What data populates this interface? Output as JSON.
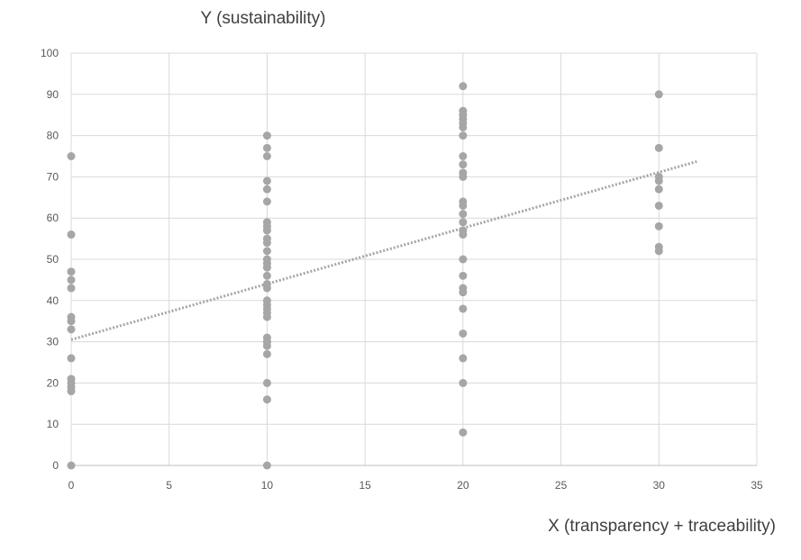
{
  "chart_data": {
    "type": "scatter",
    "title": "",
    "ylabel": "Y (sustainability)",
    "xlabel": "X (transparency + traceability)",
    "xlim": [
      0,
      35
    ],
    "ylim": [
      0,
      100
    ],
    "xticks": [
      0,
      5,
      10,
      15,
      20,
      25,
      30,
      35
    ],
    "yticks": [
      0,
      10,
      20,
      30,
      40,
      50,
      60,
      70,
      80,
      90,
      100
    ],
    "grid": true,
    "legend": "none",
    "colors": {
      "point": "#a6a6a6",
      "trendline": "#a6a6a6",
      "grid": "#d9d9d9",
      "tick_text": "#595959",
      "label_text": "#404040"
    },
    "series": [
      {
        "points": [
          [
            0,
            75
          ],
          [
            0,
            56
          ],
          [
            0,
            47
          ],
          [
            0,
            45
          ],
          [
            0,
            43
          ],
          [
            0,
            36
          ],
          [
            0,
            35
          ],
          [
            0,
            33
          ],
          [
            0,
            26
          ],
          [
            0,
            21
          ],
          [
            0,
            20
          ],
          [
            0,
            19
          ],
          [
            0,
            18
          ],
          [
            0,
            0
          ],
          [
            10,
            80
          ],
          [
            10,
            77
          ],
          [
            10,
            75
          ],
          [
            10,
            69
          ],
          [
            10,
            67
          ],
          [
            10,
            64
          ],
          [
            10,
            59
          ],
          [
            10,
            58
          ],
          [
            10,
            57
          ],
          [
            10,
            55
          ],
          [
            10,
            54
          ],
          [
            10,
            52
          ],
          [
            10,
            50
          ],
          [
            10,
            49
          ],
          [
            10,
            48
          ],
          [
            10,
            46
          ],
          [
            10,
            44
          ],
          [
            10,
            43
          ],
          [
            10,
            40
          ],
          [
            10,
            39
          ],
          [
            10,
            38
          ],
          [
            10,
            37
          ],
          [
            10,
            36
          ],
          [
            10,
            31
          ],
          [
            10,
            30
          ],
          [
            10,
            29
          ],
          [
            10,
            27
          ],
          [
            10,
            20
          ],
          [
            10,
            16
          ],
          [
            10,
            0
          ],
          [
            20,
            92
          ],
          [
            20,
            86
          ],
          [
            20,
            85
          ],
          [
            20,
            84
          ],
          [
            20,
            83
          ],
          [
            20,
            82
          ],
          [
            20,
            80
          ],
          [
            20,
            75
          ],
          [
            20,
            73
          ],
          [
            20,
            71
          ],
          [
            20,
            70
          ],
          [
            20,
            64
          ],
          [
            20,
            63
          ],
          [
            20,
            61
          ],
          [
            20,
            59
          ],
          [
            20,
            57
          ],
          [
            20,
            56
          ],
          [
            20,
            50
          ],
          [
            20,
            46
          ],
          [
            20,
            43
          ],
          [
            20,
            42
          ],
          [
            20,
            38
          ],
          [
            20,
            32
          ],
          [
            20,
            26
          ],
          [
            20,
            20
          ],
          [
            20,
            8
          ],
          [
            30,
            90
          ],
          [
            30,
            77
          ],
          [
            30,
            70
          ],
          [
            30,
            69
          ],
          [
            30,
            67
          ],
          [
            30,
            63
          ],
          [
            30,
            58
          ],
          [
            30,
            53
          ],
          [
            30,
            52
          ]
        ]
      }
    ],
    "trendline": {
      "style": "dotted",
      "x": [
        0,
        32
      ],
      "y": [
        30.5,
        73.8
      ]
    }
  }
}
